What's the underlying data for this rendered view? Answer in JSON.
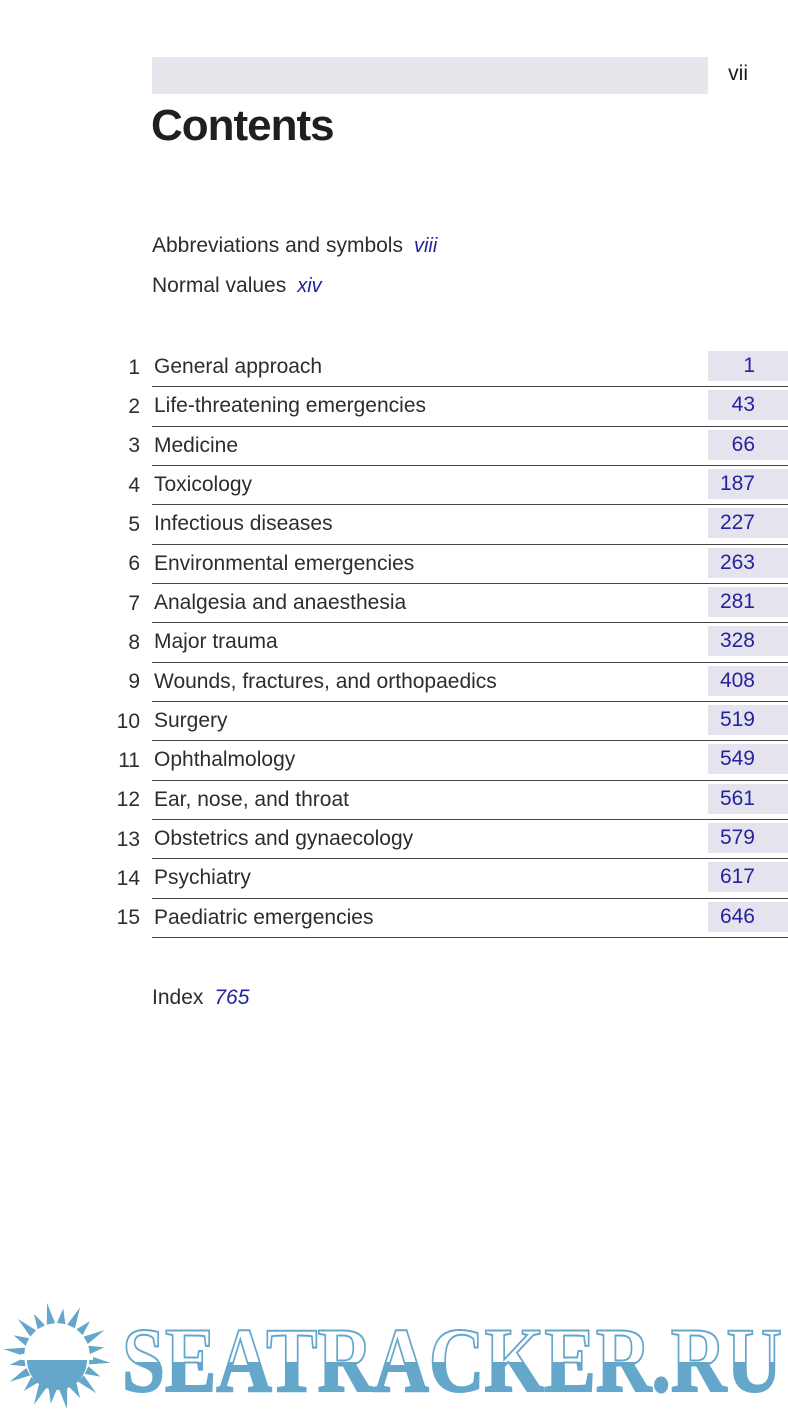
{
  "page": {
    "folio": "vii",
    "title": "Contents"
  },
  "front_matter": [
    {
      "label": "Abbreviations and symbols",
      "page": "viii"
    },
    {
      "label": "Normal values",
      "page": "xiv"
    }
  ],
  "chapters": [
    {
      "num": "1",
      "title": "General approach",
      "page": "1"
    },
    {
      "num": "2",
      "title": "Life-threatening emergencies",
      "page": "43"
    },
    {
      "num": "3",
      "title": "Medicine",
      "page": "66"
    },
    {
      "num": "4",
      "title": "Toxicology",
      "page": "187"
    },
    {
      "num": "5",
      "title": "Infectious diseases",
      "page": "227"
    },
    {
      "num": "6",
      "title": "Environmental emergencies",
      "page": "263"
    },
    {
      "num": "7",
      "title": "Analgesia and anaesthesia",
      "page": "281"
    },
    {
      "num": "8",
      "title": "Major trauma",
      "page": "328"
    },
    {
      "num": "9",
      "title": "Wounds, fractures, and orthopaedics",
      "page": "408"
    },
    {
      "num": "10",
      "title": "Surgery",
      "page": "519"
    },
    {
      "num": "11",
      "title": "Ophthalmology",
      "page": "549"
    },
    {
      "num": "12",
      "title": "Ear, nose, and throat",
      "page": "561"
    },
    {
      "num": "13",
      "title": "Obstetrics and gynaecology",
      "page": "579"
    },
    {
      "num": "14",
      "title": "Psychiatry",
      "page": "617"
    },
    {
      "num": "15",
      "title": "Paediatric emergencies",
      "page": "646"
    }
  ],
  "back_matter": {
    "label": "Index",
    "page": "765"
  },
  "watermark": {
    "text": "SEATRACKER.RU",
    "icon": "sun-logo"
  },
  "colors": {
    "header_bar": "#e8e6ec",
    "page_box": "#e5e3ed",
    "page_number_blue": "#24249e",
    "rule": "#474747",
    "text": "#2d2d2d",
    "watermark_blue": "#64a7cb"
  }
}
